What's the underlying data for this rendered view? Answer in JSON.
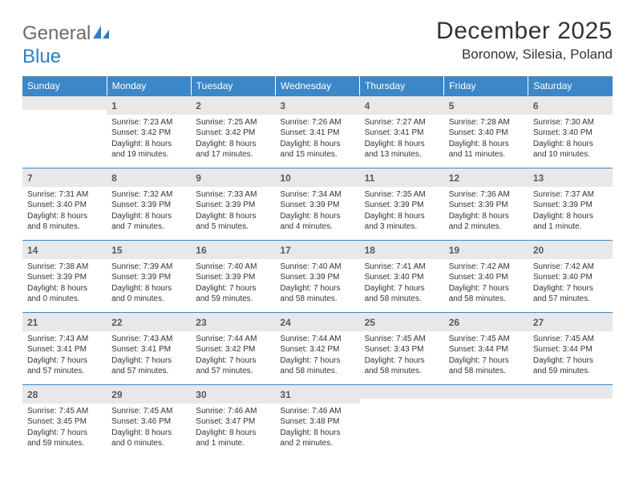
{
  "logo": {
    "text_gray": "General",
    "text_blue": "Blue",
    "icon_color": "#2e7fc2"
  },
  "header": {
    "title": "December 2025",
    "location": "Boronow, Silesia, Poland"
  },
  "styling": {
    "header_bg": "#3c87c7",
    "header_text": "#ffffff",
    "daynum_bg": "#e8e8e8",
    "border_color": "#3c87c7",
    "body_bg": "#ffffff",
    "font_family": "Arial",
    "title_fontsize": 30,
    "location_fontsize": 17,
    "daynum_fontsize": 12,
    "data_fontsize": 10
  },
  "day_headers": [
    "Sunday",
    "Monday",
    "Tuesday",
    "Wednesday",
    "Thursday",
    "Friday",
    "Saturday"
  ],
  "weeks": [
    [
      {
        "empty": true
      },
      {
        "day": "1",
        "sunrise": "Sunrise: 7:23 AM",
        "sunset": "Sunset: 3:42 PM",
        "daylight": "Daylight: 8 hours and 19 minutes."
      },
      {
        "day": "2",
        "sunrise": "Sunrise: 7:25 AM",
        "sunset": "Sunset: 3:42 PM",
        "daylight": "Daylight: 8 hours and 17 minutes."
      },
      {
        "day": "3",
        "sunrise": "Sunrise: 7:26 AM",
        "sunset": "Sunset: 3:41 PM",
        "daylight": "Daylight: 8 hours and 15 minutes."
      },
      {
        "day": "4",
        "sunrise": "Sunrise: 7:27 AM",
        "sunset": "Sunset: 3:41 PM",
        "daylight": "Daylight: 8 hours and 13 minutes."
      },
      {
        "day": "5",
        "sunrise": "Sunrise: 7:28 AM",
        "sunset": "Sunset: 3:40 PM",
        "daylight": "Daylight: 8 hours and 11 minutes."
      },
      {
        "day": "6",
        "sunrise": "Sunrise: 7:30 AM",
        "sunset": "Sunset: 3:40 PM",
        "daylight": "Daylight: 8 hours and 10 minutes."
      }
    ],
    [
      {
        "day": "7",
        "sunrise": "Sunrise: 7:31 AM",
        "sunset": "Sunset: 3:40 PM",
        "daylight": "Daylight: 8 hours and 8 minutes."
      },
      {
        "day": "8",
        "sunrise": "Sunrise: 7:32 AM",
        "sunset": "Sunset: 3:39 PM",
        "daylight": "Daylight: 8 hours and 7 minutes."
      },
      {
        "day": "9",
        "sunrise": "Sunrise: 7:33 AM",
        "sunset": "Sunset: 3:39 PM",
        "daylight": "Daylight: 8 hours and 5 minutes."
      },
      {
        "day": "10",
        "sunrise": "Sunrise: 7:34 AM",
        "sunset": "Sunset: 3:39 PM",
        "daylight": "Daylight: 8 hours and 4 minutes."
      },
      {
        "day": "11",
        "sunrise": "Sunrise: 7:35 AM",
        "sunset": "Sunset: 3:39 PM",
        "daylight": "Daylight: 8 hours and 3 minutes."
      },
      {
        "day": "12",
        "sunrise": "Sunrise: 7:36 AM",
        "sunset": "Sunset: 3:39 PM",
        "daylight": "Daylight: 8 hours and 2 minutes."
      },
      {
        "day": "13",
        "sunrise": "Sunrise: 7:37 AM",
        "sunset": "Sunset: 3:39 PM",
        "daylight": "Daylight: 8 hours and 1 minute."
      }
    ],
    [
      {
        "day": "14",
        "sunrise": "Sunrise: 7:38 AM",
        "sunset": "Sunset: 3:39 PM",
        "daylight": "Daylight: 8 hours and 0 minutes."
      },
      {
        "day": "15",
        "sunrise": "Sunrise: 7:39 AM",
        "sunset": "Sunset: 3:39 PM",
        "daylight": "Daylight: 8 hours and 0 minutes."
      },
      {
        "day": "16",
        "sunrise": "Sunrise: 7:40 AM",
        "sunset": "Sunset: 3:39 PM",
        "daylight": "Daylight: 7 hours and 59 minutes."
      },
      {
        "day": "17",
        "sunrise": "Sunrise: 7:40 AM",
        "sunset": "Sunset: 3:39 PM",
        "daylight": "Daylight: 7 hours and 58 minutes."
      },
      {
        "day": "18",
        "sunrise": "Sunrise: 7:41 AM",
        "sunset": "Sunset: 3:40 PM",
        "daylight": "Daylight: 7 hours and 58 minutes."
      },
      {
        "day": "19",
        "sunrise": "Sunrise: 7:42 AM",
        "sunset": "Sunset: 3:40 PM",
        "daylight": "Daylight: 7 hours and 58 minutes."
      },
      {
        "day": "20",
        "sunrise": "Sunrise: 7:42 AM",
        "sunset": "Sunset: 3:40 PM",
        "daylight": "Daylight: 7 hours and 57 minutes."
      }
    ],
    [
      {
        "day": "21",
        "sunrise": "Sunrise: 7:43 AM",
        "sunset": "Sunset: 3:41 PM",
        "daylight": "Daylight: 7 hours and 57 minutes."
      },
      {
        "day": "22",
        "sunrise": "Sunrise: 7:43 AM",
        "sunset": "Sunset: 3:41 PM",
        "daylight": "Daylight: 7 hours and 57 minutes."
      },
      {
        "day": "23",
        "sunrise": "Sunrise: 7:44 AM",
        "sunset": "Sunset: 3:42 PM",
        "daylight": "Daylight: 7 hours and 57 minutes."
      },
      {
        "day": "24",
        "sunrise": "Sunrise: 7:44 AM",
        "sunset": "Sunset: 3:42 PM",
        "daylight": "Daylight: 7 hours and 58 minutes."
      },
      {
        "day": "25",
        "sunrise": "Sunrise: 7:45 AM",
        "sunset": "Sunset: 3:43 PM",
        "daylight": "Daylight: 7 hours and 58 minutes."
      },
      {
        "day": "26",
        "sunrise": "Sunrise: 7:45 AM",
        "sunset": "Sunset: 3:44 PM",
        "daylight": "Daylight: 7 hours and 58 minutes."
      },
      {
        "day": "27",
        "sunrise": "Sunrise: 7:45 AM",
        "sunset": "Sunset: 3:44 PM",
        "daylight": "Daylight: 7 hours and 59 minutes."
      }
    ],
    [
      {
        "day": "28",
        "sunrise": "Sunrise: 7:45 AM",
        "sunset": "Sunset: 3:45 PM",
        "daylight": "Daylight: 7 hours and 59 minutes."
      },
      {
        "day": "29",
        "sunrise": "Sunrise: 7:45 AM",
        "sunset": "Sunset: 3:46 PM",
        "daylight": "Daylight: 8 hours and 0 minutes."
      },
      {
        "day": "30",
        "sunrise": "Sunrise: 7:46 AM",
        "sunset": "Sunset: 3:47 PM",
        "daylight": "Daylight: 8 hours and 1 minute."
      },
      {
        "day": "31",
        "sunrise": "Sunrise: 7:46 AM",
        "sunset": "Sunset: 3:48 PM",
        "daylight": "Daylight: 8 hours and 2 minutes."
      },
      {
        "empty": true
      },
      {
        "empty": true
      },
      {
        "empty": true
      }
    ]
  ]
}
